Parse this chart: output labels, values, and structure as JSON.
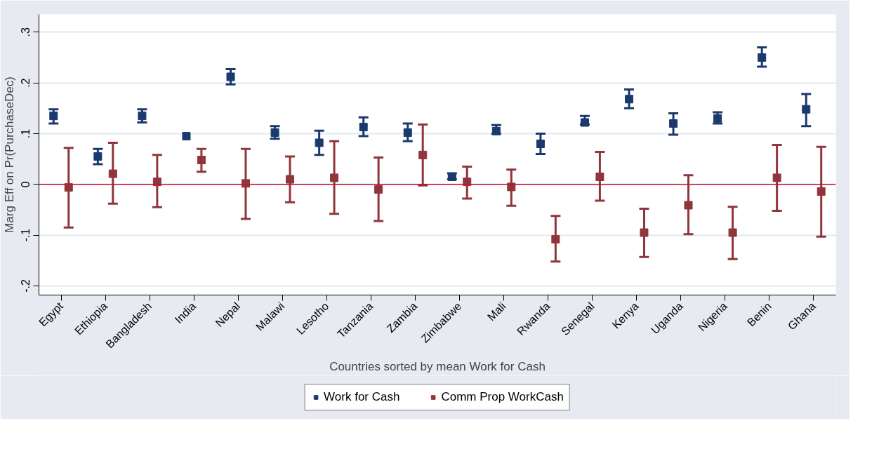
{
  "chart_data": {
    "type": "scatter",
    "xlabel": "Countries sorted by mean Work for Cash",
    "ylabel": "Marg Eff on Pr(PurchaseDec)",
    "categories": [
      "Egypt",
      "Ethiopia",
      "Bangladesh",
      "India",
      "Nepal",
      "Malawi",
      "Lesotho",
      "Tanzania",
      "Zambia",
      "Zimbabwe",
      "Mali",
      "Rwanda",
      "Senegal",
      "Kenya",
      "Uganda",
      "Nigeria",
      "Benin",
      "Ghana"
    ],
    "series": [
      {
        "name": "Work for Cash",
        "color": "#1a3a6e",
        "values": [
          0.135,
          0.055,
          0.135,
          0.095,
          0.212,
          0.102,
          0.082,
          0.113,
          0.102,
          0.015,
          0.105,
          0.08,
          0.122,
          0.168,
          0.12,
          0.13,
          0.25,
          0.148
        ],
        "errors": [
          [
            0.12,
            0.148
          ],
          [
            0.04,
            0.07
          ],
          [
            0.122,
            0.148
          ],
          null,
          [
            0.197,
            0.227
          ],
          [
            0.09,
            0.115
          ],
          [
            0.058,
            0.106
          ],
          [
            0.095,
            0.132
          ],
          [
            0.085,
            0.12
          ],
          [
            0.01,
            0.022
          ],
          [
            0.1,
            0.117
          ],
          [
            0.06,
            0.1
          ],
          [
            0.118,
            0.135
          ],
          [
            0.15,
            0.187
          ],
          [
            0.098,
            0.14
          ],
          [
            0.12,
            0.142
          ],
          [
            0.232,
            0.27
          ],
          [
            0.115,
            0.178
          ]
        ]
      },
      {
        "name": "Comm Prop WorkCash",
        "color": "#90353b",
        "values": [
          -0.006,
          0.021,
          0.005,
          0.048,
          0.002,
          0.01,
          0.013,
          -0.01,
          0.058,
          0.005,
          -0.005,
          -0.108,
          0.015,
          -0.095,
          -0.041,
          -0.095,
          0.013,
          -0.014
        ],
        "errors": [
          [
            -0.085,
            0.072
          ],
          [
            -0.038,
            0.082
          ],
          [
            -0.045,
            0.058
          ],
          [
            0.025,
            0.07
          ],
          [
            -0.068,
            0.07
          ],
          [
            -0.035,
            0.055
          ],
          [
            -0.058,
            0.085
          ],
          [
            -0.072,
            0.053
          ],
          [
            -0.002,
            0.118
          ],
          [
            -0.028,
            0.035
          ],
          [
            -0.042,
            0.029
          ],
          [
            -0.152,
            -0.062
          ],
          [
            -0.032,
            0.064
          ],
          [
            -0.143,
            -0.048
          ],
          [
            -0.098,
            0.018
          ],
          [
            -0.147,
            -0.044
          ],
          [
            -0.052,
            0.078
          ],
          [
            -0.103,
            0.074
          ]
        ]
      }
    ],
    "ylim": [
      -0.218,
      0.335
    ],
    "yticks": [
      {
        "value": -0.2,
        "label": "-.2"
      },
      {
        "value": -0.1,
        "label": "-.1"
      },
      0,
      {
        "value": 0.1,
        "label": ".1"
      },
      {
        "value": 0.2,
        "label": ".2"
      },
      {
        "value": 0.3,
        "label": ".3"
      }
    ],
    "ref_lines": [
      {
        "axis": "y",
        "value": 0,
        "color": "#c8102e"
      }
    ],
    "grid": "y",
    "legend": "bottom",
    "marker": "square"
  }
}
